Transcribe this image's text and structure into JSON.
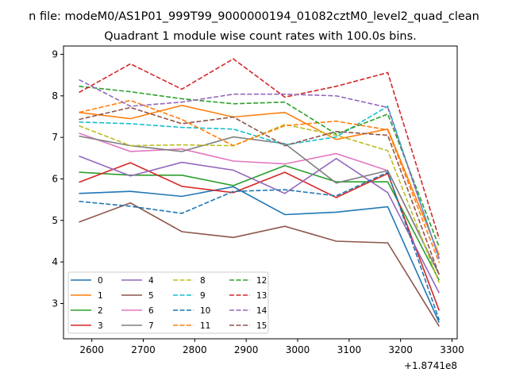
{
  "chart_data": {
    "type": "line",
    "suptitle": "n file: modeM0/AS1P01_999T99_9000000194_01082cztM0_level2_quad_clean",
    "title": "Quadrant 1 module wise count rates with 100.0s bins.",
    "xlabel": "",
    "ylabel": "",
    "x_offset_label": "+1.8741e8",
    "xlim": [
      2545,
      3310
    ],
    "ylim": [
      2.15,
      9.2
    ],
    "xticks": [
      "2600",
      "2700",
      "2800",
      "2900",
      "3000",
      "3100",
      "3200",
      "3300"
    ],
    "yticks": [
      "3",
      "4",
      "5",
      "6",
      "7",
      "8",
      "9"
    ],
    "grid": false,
    "legend_placement": "lower-left",
    "x": [
      2575,
      2675,
      2775,
      2875,
      2975,
      3075,
      3175,
      3275
    ],
    "series": [
      {
        "name": "0",
        "color": "#1f77b4",
        "style": "solid",
        "values": [
          5.65,
          5.7,
          5.58,
          5.81,
          5.14,
          5.2,
          5.33,
          2.54
        ]
      },
      {
        "name": "1",
        "color": "#ff7f0e",
        "style": "solid",
        "values": [
          7.6,
          7.45,
          7.77,
          7.49,
          7.6,
          6.95,
          7.2,
          4.17
        ]
      },
      {
        "name": "2",
        "color": "#2ca02c",
        "style": "solid",
        "values": [
          6.16,
          6.09,
          6.09,
          5.84,
          6.32,
          5.93,
          5.93,
          3.56
        ]
      },
      {
        "name": "3",
        "color": "#d62728",
        "style": "solid",
        "values": [
          5.92,
          6.39,
          5.82,
          5.67,
          6.16,
          5.55,
          6.13,
          2.83
        ]
      },
      {
        "name": "4",
        "color": "#9467bd",
        "style": "solid",
        "values": [
          6.55,
          6.07,
          6.4,
          6.21,
          5.65,
          6.49,
          5.67,
          3.25
        ]
      },
      {
        "name": "5",
        "color": "#8c564b",
        "style": "solid",
        "values": [
          4.96,
          5.42,
          4.73,
          4.59,
          4.86,
          4.5,
          4.46,
          2.45
        ]
      },
      {
        "name": "6",
        "color": "#e377c2",
        "style": "solid",
        "values": [
          7.1,
          6.66,
          6.72,
          6.43,
          6.36,
          6.61,
          6.2,
          3.69
        ]
      },
      {
        "name": "7",
        "color": "#7f7f7f",
        "style": "solid",
        "values": [
          7.03,
          6.8,
          6.66,
          7.01,
          6.85,
          5.9,
          6.2,
          3.7
        ]
      },
      {
        "name": "8",
        "color": "#bcbd22",
        "style": "dashed",
        "values": [
          7.28,
          6.8,
          6.82,
          6.8,
          7.31,
          7.05,
          6.68,
          3.5
        ]
      },
      {
        "name": "9",
        "color": "#17becf",
        "style": "dashed",
        "values": [
          7.37,
          7.33,
          7.24,
          7.2,
          6.82,
          7.01,
          7.75,
          4.08
        ]
      },
      {
        "name": "10",
        "color": "#1f77b4",
        "style": "dashed",
        "values": [
          5.46,
          5.34,
          5.17,
          5.7,
          5.74,
          5.59,
          6.16,
          2.6
        ]
      },
      {
        "name": "11",
        "color": "#ff7f0e",
        "style": "dashed",
        "values": [
          7.6,
          7.89,
          7.43,
          6.8,
          7.28,
          7.39,
          7.18,
          3.98
        ]
      },
      {
        "name": "12",
        "color": "#2ca02c",
        "style": "dashed",
        "values": [
          8.23,
          8.1,
          7.93,
          7.81,
          7.85,
          7.08,
          7.56,
          4.36
        ]
      },
      {
        "name": "13",
        "color": "#d62728",
        "style": "dashed",
        "values": [
          8.08,
          8.77,
          8.16,
          8.89,
          7.97,
          8.23,
          8.56,
          4.56
        ]
      },
      {
        "name": "14",
        "color": "#9467bd",
        "style": "dashed",
        "values": [
          8.39,
          7.75,
          7.85,
          8.04,
          8.04,
          8.0,
          7.72,
          4.08
        ]
      },
      {
        "name": "15",
        "color": "#8c564b",
        "style": "dashed",
        "values": [
          7.43,
          7.72,
          7.33,
          7.49,
          6.8,
          7.14,
          7.05,
          3.69
        ]
      }
    ]
  }
}
